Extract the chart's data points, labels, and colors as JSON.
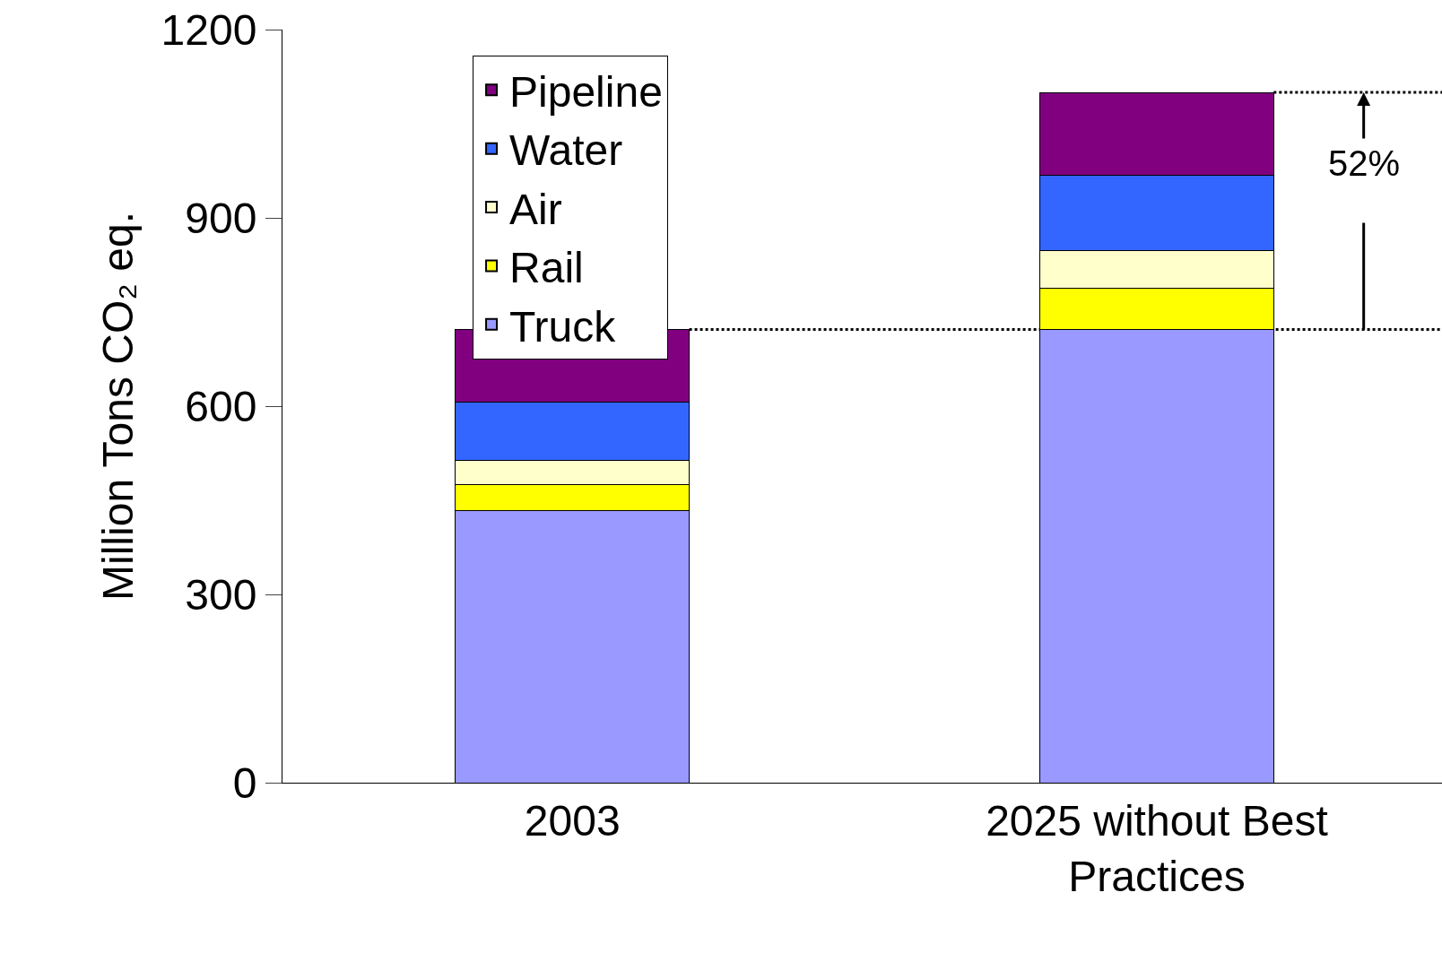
{
  "chart_data": {
    "type": "bar",
    "stacked": true,
    "ylabel": "Million Tons CO₂ eq.",
    "categories": [
      "2003",
      "2025 without Best Practices"
    ],
    "series": [
      {
        "name": "Truck",
        "color": "#9999ff",
        "values": [
          433,
          722
        ]
      },
      {
        "name": "Rail",
        "color": "#ffff00",
        "values": [
          42,
          66
        ]
      },
      {
        "name": "Air",
        "color": "#ffffcc",
        "values": [
          38,
          60
        ]
      },
      {
        "name": "Water",
        "color": "#3366ff",
        "values": [
          94,
          120
        ]
      },
      {
        "name": "Pipeline",
        "color": "#800080",
        "values": [
          115,
          132
        ]
      }
    ],
    "ylim": [
      0,
      1200
    ],
    "yticks": [
      0,
      300,
      600,
      900,
      1200
    ],
    "legend": "top left",
    "ref_lines": [
      {
        "axis": "y",
        "value": 722,
        "line_style": "dotted",
        "color": "#000000"
      },
      {
        "axis": "y",
        "value": 1100,
        "line_style": "dotted",
        "color": "#000000"
      }
    ],
    "annotations": [
      {
        "text": "52%",
        "y": 1100
      }
    ]
  }
}
